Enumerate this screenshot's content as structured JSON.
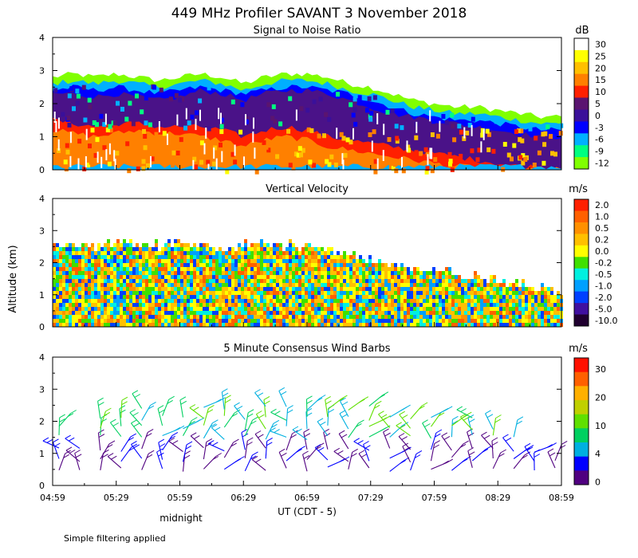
{
  "header": {
    "title": "449 MHz Profiler SAVANT  3 November 2018",
    "shared_ylabel": "Altitude (km)",
    "footnote": "Simple filtering applied"
  },
  "chart_data": [
    {
      "type": "heatmap",
      "title": "Signal to Noise Ratio",
      "x_ticks": [
        "04:59",
        "05:29",
        "05:59",
        "06:29",
        "06:59",
        "07:29",
        "07:59",
        "08:29",
        "08:59"
      ],
      "y_ticks": [
        "0",
        "1",
        "2",
        "3",
        "4"
      ],
      "ylim": [
        0,
        4
      ],
      "colorbar": {
        "unit": "dB",
        "labels": [
          "30",
          "25",
          "20",
          "15",
          "10",
          "5",
          "0",
          "-3",
          "-6",
          "-9",
          "-12"
        ],
        "colors": [
          "#ffffff",
          "#ffff00",
          "#ffc000",
          "#ff8000",
          "#ff2000",
          "#5a1470",
          "#3a109a",
          "#0000ff",
          "#00b0ff",
          "#00ff80",
          "#80ff00"
        ]
      },
      "layers": [
        {
          "band": "-12 to -9 dB",
          "color": "#80ff00",
          "top_km": [
            2.8,
            2.9,
            2.8,
            2.9,
            2.8,
            2.7,
            2.8,
            2.9,
            2.8,
            2.6,
            2.8,
            2.9,
            2.9,
            2.8,
            2.6,
            2.5,
            2.3,
            2.1,
            2.0,
            1.9,
            1.9,
            1.8,
            1.7,
            1.6,
            1.6
          ]
        },
        {
          "band": "-9 to -3 dB",
          "color": "#00b0ff",
          "top_km": [
            2.6,
            2.7,
            2.6,
            2.7,
            2.6,
            2.5,
            2.6,
            2.7,
            2.6,
            2.4,
            2.6,
            2.7,
            2.7,
            2.6,
            2.4,
            2.3,
            2.1,
            1.9,
            1.8,
            1.7,
            1.7,
            1.6,
            1.5,
            1.4,
            1.4
          ]
        },
        {
          "band": "-3 to 0 dB",
          "color": "#0000ff",
          "top_km": [
            2.4,
            2.5,
            2.4,
            2.5,
            2.4,
            2.3,
            2.4,
            2.5,
            2.4,
            2.3,
            2.4,
            2.5,
            2.5,
            2.4,
            2.3,
            2.1,
            1.9,
            1.7,
            1.6,
            1.5,
            1.5,
            1.4,
            1.3,
            1.2,
            1.2
          ]
        },
        {
          "band": "0 to 10 dB",
          "color": "#4a1288",
          "top_km": [
            2.3,
            2.3,
            2.2,
            2.3,
            2.2,
            2.1,
            2.2,
            2.4,
            2.3,
            2.1,
            2.3,
            2.4,
            2.4,
            2.3,
            2.1,
            1.9,
            1.7,
            1.6,
            1.5,
            1.4,
            1.3,
            1.2,
            1.1,
            1.0,
            1.0
          ]
        },
        {
          "band": "10 to 15 dB",
          "color": "#ff2000",
          "top_km": [
            1.5,
            1.4,
            1.3,
            1.4,
            1.4,
            1.3,
            1.3,
            1.3,
            1.2,
            1.0,
            1.2,
            1.3,
            1.2,
            1.0,
            0.9,
            0.8,
            0.7,
            0.6,
            0.5,
            0.4,
            0.3,
            0.2,
            0.1,
            0.1,
            0.1
          ]
        },
        {
          "band": "15 to 20 dB",
          "color": "#ff8000",
          "top_km": [
            1.2,
            1.1,
            1.0,
            1.1,
            1.2,
            1.1,
            1.1,
            1.0,
            0.9,
            0.7,
            0.9,
            1.0,
            0.9,
            0.7,
            0.6,
            0.5,
            0.4,
            0.3,
            0.2,
            0.1,
            0.1,
            0.0,
            0.0,
            0.0,
            0.0
          ]
        },
        {
          "band": "-9 to -3 dB (surface)",
          "color": "#00b0ff",
          "top_km": [
            0.1,
            0.1,
            0.1,
            0.1,
            0.1,
            0.1,
            0.1,
            0.1,
            0.1,
            0.1,
            0.1,
            0.1,
            0.1,
            0.1,
            0.1,
            0.1,
            0.1,
            0.1,
            0.1,
            0.1,
            0.1,
            0.1,
            0.1,
            0.1,
            0.1
          ]
        }
      ]
    },
    {
      "type": "heatmap",
      "title": "Vertical Velocity",
      "x_ticks": [
        "04:59",
        "05:29",
        "05:59",
        "06:29",
        "06:59",
        "07:29",
        "07:59",
        "08:29",
        "08:59"
      ],
      "y_ticks": [
        "0",
        "1",
        "2",
        "3",
        "4"
      ],
      "ylim": [
        0,
        4
      ],
      "colorbar": {
        "unit": "m/s",
        "labels": [
          "2.0",
          "1.0",
          "0.5",
          "0.2",
          "0.0",
          "-0.2",
          "-0.5",
          "-1.0",
          "-2.0",
          "-5.0",
          "-10.0"
        ],
        "colors": [
          "#ff2000",
          "#ff6000",
          "#ff9000",
          "#ffc000",
          "#ffff00",
          "#40e000",
          "#00f0e0",
          "#00a0ff",
          "#0040ff",
          "#4010a0",
          "#200030"
        ]
      },
      "data_top_km": [
        2.6,
        2.7,
        2.6,
        2.7,
        2.6,
        2.6,
        2.7,
        2.6,
        2.5,
        2.6,
        2.7,
        2.6,
        2.5,
        2.4,
        2.3,
        2.2,
        2.0,
        1.9,
        1.8,
        1.7,
        1.6,
        1.5,
        1.4,
        1.3,
        1.1
      ]
    },
    {
      "type": "scatter",
      "title": "5 Minute Consensus Wind Barbs",
      "x_ticks": [
        "04:59",
        "05:29",
        "05:59",
        "06:29",
        "06:59",
        "07:29",
        "07:59",
        "08:29",
        "08:59"
      ],
      "y_ticks": [
        "0",
        "1",
        "2",
        "3",
        "4"
      ],
      "ylim": [
        0,
        4
      ],
      "xlabel": "UT  (CDT - 5)",
      "annotation": "midnight",
      "colorbar": {
        "unit": "m/s",
        "labels": [
          "30",
          "20",
          "10",
          "4",
          "0"
        ],
        "colors": [
          "#ff1000",
          "#ff6000",
          "#ffb000",
          "#c0d000",
          "#60e000",
          "#00d060",
          "#00b0e0",
          "#0000ff",
          "#500080"
        ]
      },
      "barb_levels_km": [
        0.5,
        0.8,
        1.1,
        1.5,
        1.8,
        2.1,
        2.4
      ],
      "profiles_top_km": [
        2.0,
        1.2,
        2.1,
        2.3,
        2.4,
        2.1,
        2.3,
        2.6,
        2.5,
        2.3,
        2.6,
        2.7,
        2.9,
        2.6,
        2.5,
        2.4,
        2.3,
        2.1,
        2.1,
        2.0,
        2.1,
        1.9,
        1.6,
        1.1,
        0.9
      ]
    }
  ]
}
